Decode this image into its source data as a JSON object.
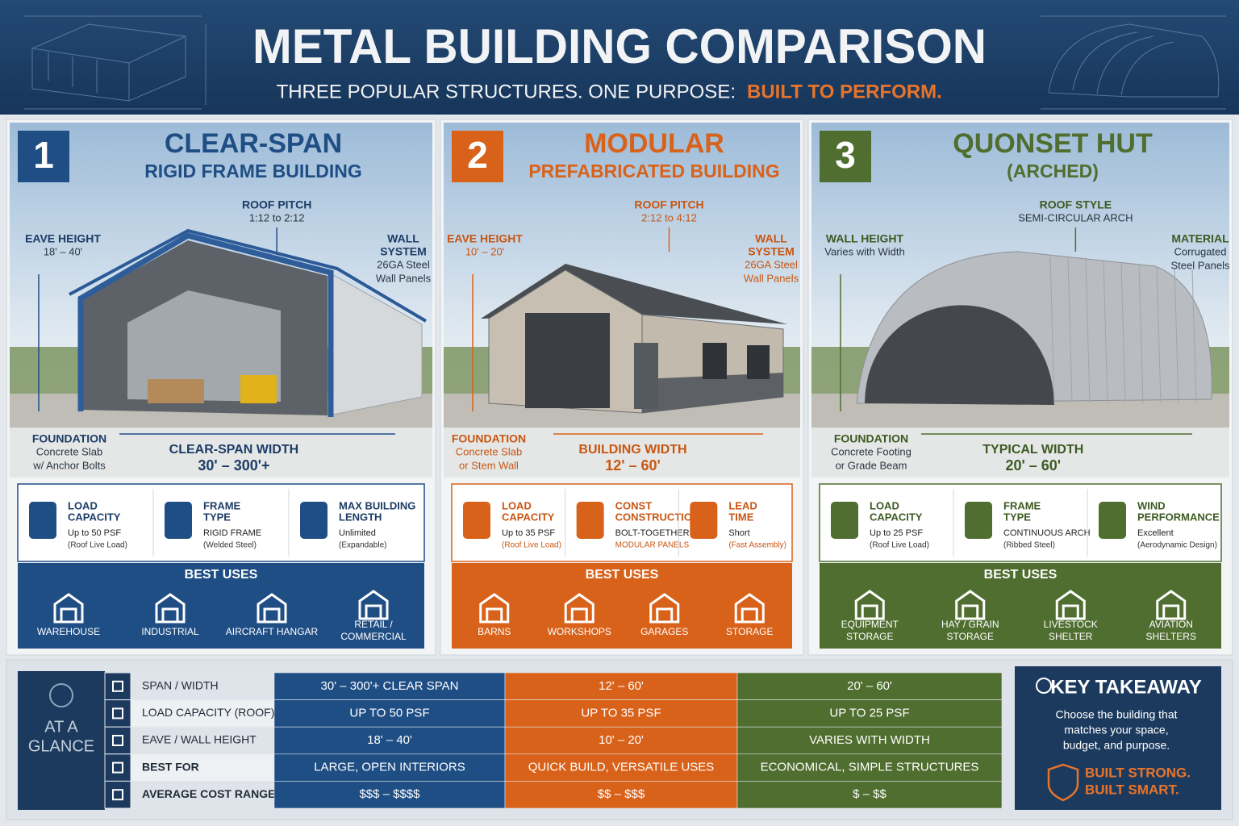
{
  "header": {
    "title": "METAL BUILDING COMPARISON",
    "subtitle": "THREE POPULAR STRUCTURES.  ONE PURPOSE:",
    "tagline": "BUILT TO PERFORM."
  },
  "columns": [
    {
      "number": "1",
      "title": "CLEAR-SPAN",
      "subtitle": "RIGID FRAME BUILDING",
      "callouts": [
        {
          "label": [
            "ROOF PITCH"
          ],
          "detail": [
            "1:12 to 2:12"
          ]
        },
        {
          "label": [
            "EAVE HEIGHT"
          ],
          "detail": [
            "18' – 40'"
          ]
        },
        {
          "label": [
            "WALL",
            "SYSTEM"
          ],
          "detail": [
            "26GA Steel",
            "Wall Panels"
          ]
        },
        {
          "label": [
            "FOUNDATION"
          ],
          "detail": [
            "Concrete Slab",
            "w/ Anchor Bolts"
          ]
        }
      ],
      "width": {
        "label": "CLEAR-SPAN WIDTH",
        "value": "30' – 300'+"
      },
      "specs": [
        {
          "label": [
            "LOAD",
            "CAPACITY"
          ],
          "value": "Up to 50 PSF",
          "note": "(Roof Live Load)"
        },
        {
          "label": [
            "FRAME",
            "TYPE"
          ],
          "value": "RIGID FRAME",
          "note": "(Welded Steel)"
        },
        {
          "label": [
            "MAX BUILDING",
            "LENGTH"
          ],
          "value": "Unlimited",
          "note": "(Expandable)"
        }
      ],
      "best_uses_title": "BEST USES",
      "best_uses": [
        [
          "WAREHOUSE"
        ],
        [
          "INDUSTRIAL"
        ],
        [
          "AIRCRAFT HANGAR"
        ],
        [
          "RETAIL /",
          "COMMERCIAL"
        ]
      ]
    },
    {
      "number": "2",
      "title": "MODULAR",
      "subtitle": "PREFABRICATED BUILDING",
      "callouts": [
        {
          "label": [
            "ROOF PITCH"
          ],
          "detail": [
            "2:12 to 4:12"
          ]
        },
        {
          "label": [
            "EAVE HEIGHT"
          ],
          "detail": [
            "10' – 20'"
          ]
        },
        {
          "label": [
            "WALL",
            "SYSTEM"
          ],
          "detail": [
            "26GA Steel",
            "Wall Panels"
          ]
        },
        {
          "label": [
            "FOUNDATION"
          ],
          "detail": [
            "Concrete Slab",
            "or Stem Wall"
          ]
        }
      ],
      "width": {
        "label": "BUILDING WIDTH",
        "value": "12' – 60'"
      },
      "specs": [
        {
          "label": [
            "LOAD",
            "CAPACITY"
          ],
          "value": "Up to 35 PSF",
          "note": "(Roof Live Load)"
        },
        {
          "label": [
            "CONST",
            "CONSTRUCTION"
          ],
          "value": "BOLT-TOGETHER",
          "note": "MODULAR PANELS"
        },
        {
          "label": [
            "LEAD",
            "TIME"
          ],
          "value": "Short",
          "note": "(Fast Assembly)"
        }
      ],
      "best_uses_title": "BEST USES",
      "best_uses": [
        [
          "BARNS"
        ],
        [
          "WORKSHOPS"
        ],
        [
          "GARAGES"
        ],
        [
          "STORAGE"
        ]
      ]
    },
    {
      "number": "3",
      "title": "QUONSET HUT",
      "subtitle": "(ARCHED)",
      "callouts": [
        {
          "label": [
            "ROOF STYLE"
          ],
          "detail": [
            "SEMI-CIRCULAR ARCH"
          ]
        },
        {
          "label": [
            "WALL HEIGHT"
          ],
          "detail": [
            "Varies with Width"
          ]
        },
        {
          "label": [
            "MATERIAL"
          ],
          "detail": [
            "Corrugated",
            "Steel Panels"
          ]
        },
        {
          "label": [
            "FOUNDATION"
          ],
          "detail": [
            "Concrete Footing",
            "or Grade Beam"
          ]
        }
      ],
      "width": {
        "label": "TYPICAL WIDTH",
        "value": "20' – 60'"
      },
      "specs": [
        {
          "label": [
            "LOAD",
            "CAPACITY"
          ],
          "value": "Up to 25 PSF",
          "note": "(Roof Live Load)"
        },
        {
          "label": [
            "FRAME",
            "TYPE"
          ],
          "value": "CONTINUOUS ARCH",
          "note": "(Ribbed Steel)"
        },
        {
          "label": [
            "WIND",
            "PERFORMANCE"
          ],
          "value": "Excellent",
          "note": "(Aerodynamic Design)"
        }
      ],
      "best_uses_title": "BEST USES",
      "best_uses": [
        [
          "EQUIPMENT",
          "STORAGE"
        ],
        [
          "HAY / GRAIN",
          "STORAGE"
        ],
        [
          "LIVESTOCK",
          "SHELTER"
        ],
        [
          "AVIATION",
          "SHELTERS"
        ]
      ]
    }
  ],
  "glance": {
    "label": [
      "AT A",
      "GLANCE"
    ],
    "rows": [
      {
        "label": "SPAN / WIDTH",
        "values": [
          "30' – 300'+ CLEAR SPAN",
          "12' – 60'",
          "20' – 60'"
        ]
      },
      {
        "label": "LOAD CAPACITY (ROOF)",
        "values": [
          "UP TO 50 PSF",
          "UP TO 35 PSF",
          "UP TO 25 PSF"
        ]
      },
      {
        "label": "EAVE / WALL HEIGHT",
        "values": [
          "18' – 40'",
          "10' – 20'",
          "VARIES WITH WIDTH"
        ]
      },
      {
        "label": "BEST FOR",
        "values": [
          "LARGE, OPEN INTERIORS",
          "QUICK BUILD, VERSATILE USES",
          "ECONOMICAL, SIMPLE STRUCTURES"
        ]
      },
      {
        "label": "AVERAGE COST RANGE",
        "values": [
          "$$$ – $$$$",
          "$$ – $$$",
          "$ – $$"
        ]
      }
    ]
  },
  "takeaway": {
    "title": "KEY TAKEAWAY",
    "text": [
      "Choose the building that",
      "matches your space,",
      "budget, and purpose."
    ],
    "slogan": [
      "BUILT STRONG.",
      "BUILT SMART."
    ]
  }
}
